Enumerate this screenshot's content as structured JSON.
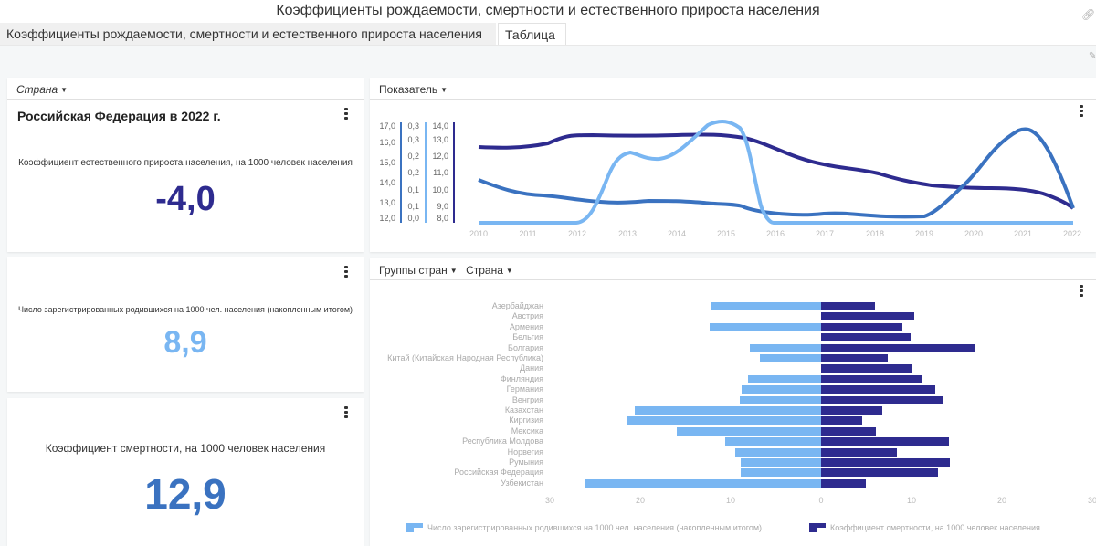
{
  "window": {
    "title": "Коэффициенты рождаемости, смертности и естественного прироста населения"
  },
  "tabs": [
    {
      "label": "Коэффициенты рождаемости, смертности и естественного прироста населения",
      "active": false
    },
    {
      "label": "Таблица",
      "active": true
    }
  ],
  "colors": {
    "dark_navy": "#2e2b8f",
    "mid_blue": "#3a72c0",
    "light_blue": "#79b6f2",
    "canvas_bg": "#f5f7f8"
  },
  "kpi_panel_1": {
    "filter_label": "Страна",
    "title": "Российская Федерация в 2022 г.",
    "metric_label": "Коэффициент естественного прироста населения, на 1000 человек населения",
    "value": "-4,0"
  },
  "kpi_panel_2": {
    "metric_label": "Число зарегистрированных родившихся на 1000 чел. населения (накопленным итогом)",
    "value": "8,9"
  },
  "kpi_panel_3": {
    "metric_label": "Коэффициент смертности, на 1000 человек населения",
    "value": "12,9"
  },
  "line_panel": {
    "filter_label": "Показатель"
  },
  "bar_panel": {
    "filter_labels": [
      "Группы стран",
      "Страна"
    ]
  },
  "chart_data": [
    {
      "type": "line",
      "title": "",
      "x": [
        2010,
        2011,
        2012,
        2013,
        2014,
        2015,
        2016,
        2017,
        2018,
        2019,
        2020,
        2021,
        2022
      ],
      "axes": [
        {
          "ticks": [
            "17,0",
            "16,0",
            "15,0",
            "14,0",
            "13,0",
            "12,0"
          ],
          "range": [
            12,
            17
          ]
        },
        {
          "ticks": [
            "0,3",
            "0,3",
            "0,2",
            "0,2",
            "0,1",
            "0,1",
            "0,0"
          ],
          "range": [
            0,
            0.3
          ]
        },
        {
          "ticks": [
            "14,0",
            "13,0",
            "12,0",
            "11,0",
            "10,0",
            "9,0",
            "8,0"
          ],
          "range": [
            8,
            14
          ]
        }
      ],
      "series": [
        {
          "name": "dark navy series",
          "color": "#2e2b8f",
          "values": [
            13.6,
            13.7,
            14.1,
            14.0,
            14.1,
            14.1,
            13.7,
            13.0,
            12.7,
            12.3,
            12.2,
            12.1,
            11.6
          ]
        },
        {
          "name": "mid blue series",
          "color": "#3a72c0",
          "values": [
            13.2,
            12.7,
            12.5,
            12.2,
            12.3,
            12.2,
            12.1,
            11.7,
            11.8,
            11.6,
            13.3,
            14.8,
            11.8
          ]
        },
        {
          "name": "light blue series",
          "color": "#79b6f2",
          "values": [
            0.0,
            0.0,
            0.0,
            0.2,
            0.2,
            0.3,
            0.0,
            0.0,
            0.0,
            0.0,
            0.0,
            0.0,
            0.0
          ]
        }
      ],
      "grid": false
    },
    {
      "type": "bar",
      "orientation": "horizontal-diverging",
      "categories": [
        "Азербайджан",
        "Австрия",
        "Армения",
        "Бельгия",
        "Болгария",
        "Китай (Китайская Народная Республика)",
        "Дания",
        "Финляндия",
        "Германия",
        "Венгрия",
        "Казахстан",
        "Киргизия",
        "Мексика",
        "Республика Молдова",
        "Норвегия",
        "Румыния",
        "Российская Федерация",
        "Узбекистан"
      ],
      "series": [
        {
          "name": "Число зарегистрированных родившихся на 1000 чел. населения (накопленным итогом)",
          "color": "#79b6f2",
          "side": "left",
          "values": [
            12.2,
            0,
            12.3,
            0,
            7.9,
            6.8,
            0,
            8.1,
            8.8,
            9.0,
            20.6,
            21.5,
            16.0,
            10.6,
            9.5,
            8.9,
            8.9,
            26.2
          ]
        },
        {
          "name": "Коэффициент смертности, на 1000 человек населения",
          "color": "#2e2b8f",
          "side": "right",
          "values": [
            6.0,
            10.3,
            9.0,
            9.9,
            17.1,
            7.4,
            10.0,
            11.2,
            12.6,
            13.4,
            6.8,
            4.5,
            6.1,
            14.1,
            8.4,
            14.2,
            12.9,
            4.9
          ]
        }
      ],
      "x_ticks": [
        "30",
        "20",
        "10",
        "0",
        "10",
        "20",
        "30"
      ],
      "xlim": [
        -30,
        30
      ],
      "legend_position": "bottom",
      "grid": false
    }
  ]
}
